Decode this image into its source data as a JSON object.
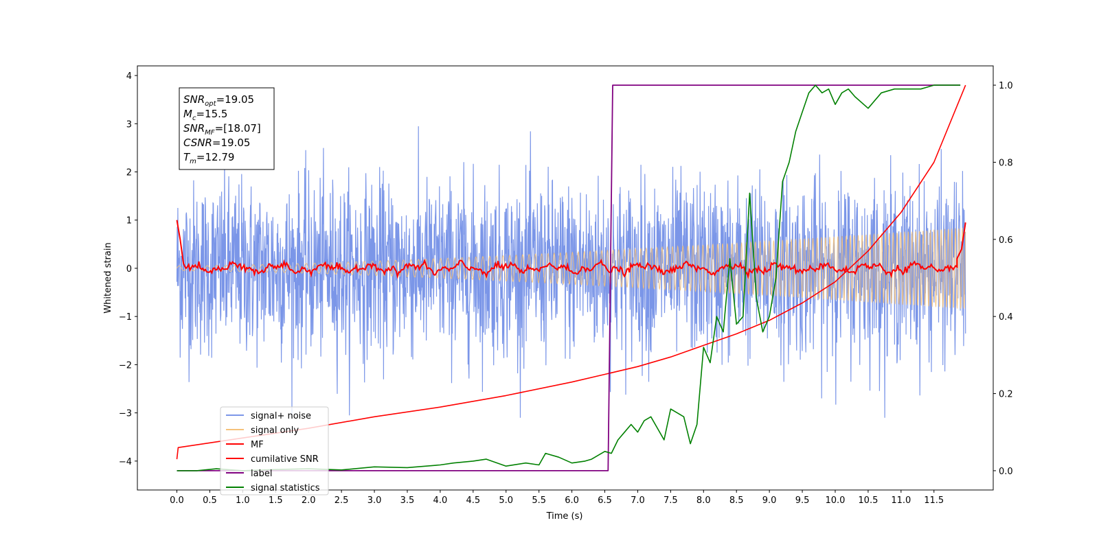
{
  "chart_data": {
    "type": "line",
    "xlabel": "Time (s)",
    "ylabel": "Whitened strain",
    "xlim": [
      -0.6,
      12.4
    ],
    "ylim": [
      -4.6,
      4.2
    ],
    "y2lim": [
      -0.05,
      1.05
    ],
    "x_ticks": [
      "0.0",
      "0.5",
      "1.0",
      "1.5",
      "2.0",
      "2.5",
      "3.0",
      "3.5",
      "4.0",
      "4.5",
      "5.0",
      "5.5",
      "6.0",
      "6.5",
      "7.0",
      "7.5",
      "8.0",
      "8.5",
      "9.0",
      "9.5",
      "10.0",
      "10.5",
      "11.0",
      "11.5"
    ],
    "y_ticks": [
      "4",
      "3",
      "2",
      "1",
      "0",
      "−1",
      "−2",
      "−3",
      "−4"
    ],
    "y2_ticks": [
      "1.0",
      "0.8",
      "0.6",
      "0.4",
      "0.2",
      "0.0"
    ],
    "grid": false,
    "legend_position": "lower-left",
    "annotation": {
      "lines": [
        {
          "base": "SNR",
          "sub": "opt",
          "value": "=19.05"
        },
        {
          "base": "M",
          "sub": "c",
          "value": "=15.5"
        },
        {
          "base": "SNR",
          "sub": "MF",
          "value": "=[18.07]"
        },
        {
          "base": "CSNR",
          "sub": "",
          "value": "=19.05"
        },
        {
          "base": "T",
          "sub": "m",
          "value": "=12.79"
        }
      ]
    },
    "series": [
      {
        "name": "signal+ noise",
        "color": "#7b96e8",
        "axis": "left",
        "x_range": [
          0,
          11.98
        ],
        "amplitude_std": 0.9,
        "range": [
          -3.1,
          3.8
        ]
      },
      {
        "name": "signal only",
        "color": "#f5c27a",
        "axis": "left",
        "x_range": [
          0,
          11.98
        ],
        "amplitude_start": 0.05,
        "amplitude_end": 0.85
      },
      {
        "name": "MF",
        "color": "#ff0000",
        "axis": "left",
        "x": [
          0.0,
          0.05,
          0.1,
          11.85,
          11.92,
          11.98
        ],
        "y": [
          1.0,
          0.6,
          0.1,
          0.2,
          0.4,
          0.95
        ],
        "level": 0.0
      },
      {
        "name": "cumilative SNR",
        "color": "#ff0000",
        "axis": "right",
        "x": [
          0.0,
          0.02,
          1.0,
          2.0,
          3.0,
          4.0,
          5.0,
          6.0,
          6.5,
          7.0,
          7.5,
          8.0,
          8.5,
          9.0,
          9.5,
          10.0,
          10.5,
          11.0,
          11.5,
          11.98
        ],
        "y": [
          0.03,
          0.06,
          0.085,
          0.11,
          0.14,
          0.165,
          0.195,
          0.23,
          0.25,
          0.27,
          0.295,
          0.325,
          0.355,
          0.39,
          0.435,
          0.49,
          0.57,
          0.67,
          0.8,
          1.0
        ]
      },
      {
        "name": "label",
        "color": "#800080",
        "axis": "right",
        "x": [
          0.0,
          6.55,
          6.62,
          11.9
        ],
        "y": [
          0.0,
          0.0,
          1.0,
          1.0
        ]
      },
      {
        "name": "signal statistics",
        "color": "#008000",
        "axis": "right",
        "x": [
          0.0,
          0.3,
          0.6,
          1.0,
          1.5,
          2.0,
          2.5,
          3.0,
          3.5,
          4.0,
          4.2,
          4.5,
          4.7,
          5.0,
          5.3,
          5.5,
          5.6,
          5.8,
          6.0,
          6.2,
          6.3,
          6.4,
          6.5,
          6.6,
          6.7,
          6.8,
          6.9,
          7.0,
          7.1,
          7.2,
          7.3,
          7.4,
          7.5,
          7.6,
          7.7,
          7.8,
          7.9,
          8.0,
          8.1,
          8.2,
          8.3,
          8.4,
          8.5,
          8.6,
          8.7,
          8.8,
          8.9,
          9.0,
          9.1,
          9.2,
          9.3,
          9.4,
          9.5,
          9.6,
          9.7,
          9.8,
          9.9,
          10.0,
          10.1,
          10.2,
          10.3,
          10.5,
          10.7,
          10.9,
          11.1,
          11.3,
          11.5,
          11.7,
          11.9
        ],
        "y": [
          0.0,
          0.0,
          0.005,
          0.0,
          0.003,
          0.005,
          0.002,
          0.01,
          0.008,
          0.015,
          0.02,
          0.025,
          0.03,
          0.012,
          0.02,
          0.015,
          0.045,
          0.035,
          0.02,
          0.025,
          0.03,
          0.04,
          0.05,
          0.045,
          0.08,
          0.1,
          0.12,
          0.1,
          0.13,
          0.14,
          0.11,
          0.08,
          0.16,
          0.15,
          0.14,
          0.07,
          0.12,
          0.32,
          0.28,
          0.4,
          0.36,
          0.55,
          0.38,
          0.4,
          0.72,
          0.45,
          0.36,
          0.4,
          0.5,
          0.75,
          0.8,
          0.88,
          0.93,
          0.98,
          1.0,
          0.98,
          0.99,
          0.95,
          0.98,
          0.99,
          0.97,
          0.94,
          0.98,
          0.99,
          0.99,
          0.99,
          1.0,
          1.0,
          1.0
        ]
      }
    ]
  }
}
